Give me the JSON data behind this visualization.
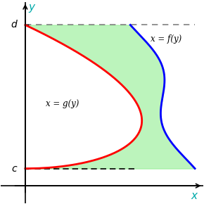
{
  "title": "",
  "background_color": "#ffffff",
  "shade_color": "#90EE90",
  "shade_alpha": 0.6,
  "f_color": "#0000FF",
  "g_color": "#FF0000",
  "axis_color": "#000000",
  "dashed_color": "#808080",
  "dashed_bottom_color": "#000000",
  "y_label": "y",
  "x_label": "x",
  "c_label": "c",
  "d_label": "d",
  "f_label": "x = f(y)",
  "g_label": "x = g(y)",
  "xlim": [
    -0.3,
    2.2
  ],
  "ylim": [
    -0.3,
    3.2
  ],
  "c_val": 0.3,
  "d_val": 2.8
}
